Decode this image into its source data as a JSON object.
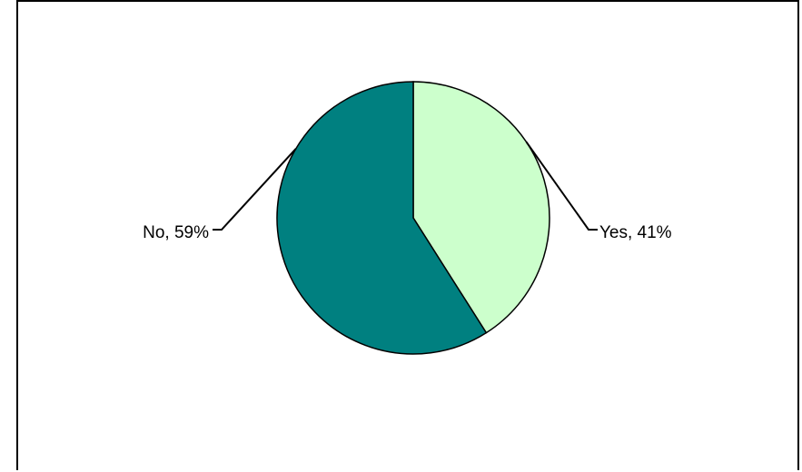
{
  "chart_data": {
    "type": "pie",
    "categories": [
      "Yes",
      "No"
    ],
    "values": [
      41,
      59
    ],
    "data_labels": [
      "Yes, 41%",
      "No, 59%"
    ],
    "colors": [
      "#ccffcc",
      "#008080"
    ],
    "title": "",
    "legend": false
  }
}
